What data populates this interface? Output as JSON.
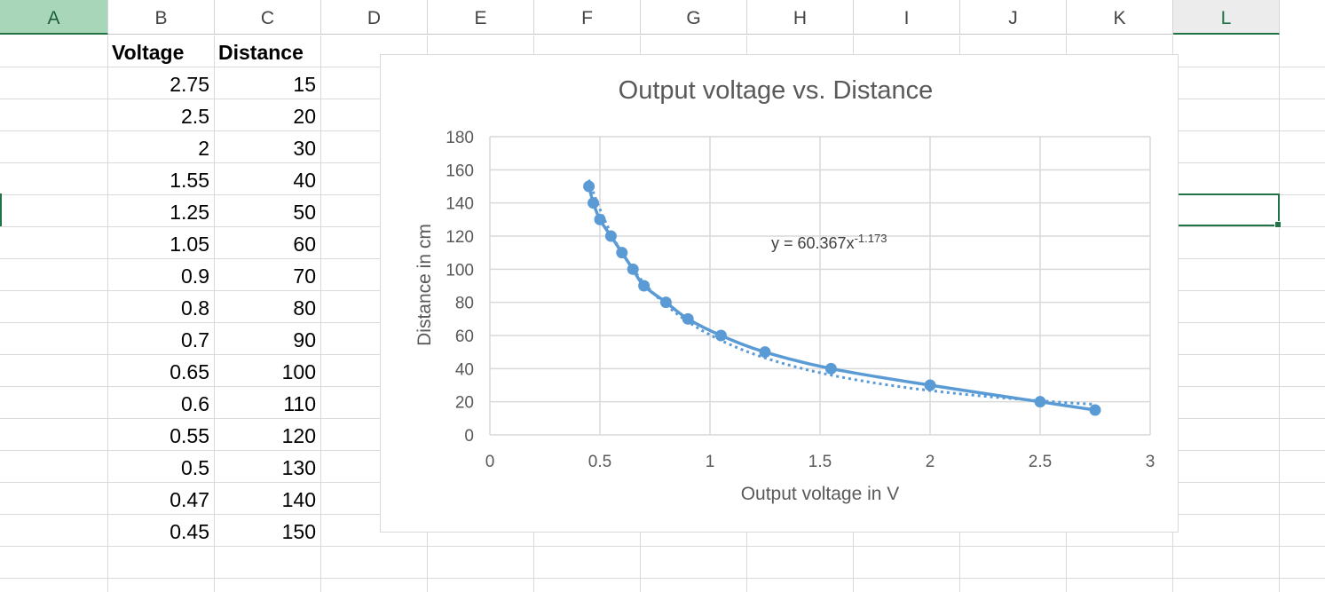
{
  "sheet": {
    "columns": [
      "A",
      "B",
      "C",
      "D",
      "E",
      "F",
      "G",
      "H",
      "I",
      "J",
      "K",
      "L"
    ],
    "selected_column": "A",
    "active_cell_column": "L",
    "headers": {
      "voltage": "Voltage",
      "distance": "Distance"
    },
    "rows": [
      {
        "voltage": "2.75",
        "distance": "15"
      },
      {
        "voltage": "2.5",
        "distance": "20"
      },
      {
        "voltage": "2",
        "distance": "30"
      },
      {
        "voltage": "1.55",
        "distance": "40"
      },
      {
        "voltage": "1.25",
        "distance": "50"
      },
      {
        "voltage": "1.05",
        "distance": "60"
      },
      {
        "voltage": "0.9",
        "distance": "70"
      },
      {
        "voltage": "0.8",
        "distance": "80"
      },
      {
        "voltage": "0.7",
        "distance": "90"
      },
      {
        "voltage": "0.65",
        "distance": "100"
      },
      {
        "voltage": "0.6",
        "distance": "110"
      },
      {
        "voltage": "0.55",
        "distance": "120"
      },
      {
        "voltage": "0.5",
        "distance": "130"
      },
      {
        "voltage": "0.47",
        "distance": "140"
      },
      {
        "voltage": "0.45",
        "distance": "150"
      }
    ]
  },
  "chart_data": {
    "type": "scatter",
    "title": "Output voltage vs. Distance",
    "xlabel": "Output voltage in V",
    "ylabel": "Distance in cm",
    "xlim": [
      0,
      3
    ],
    "ylim": [
      0,
      180
    ],
    "x_ticks": [
      "0",
      "0.5",
      "1",
      "1.5",
      "2",
      "2.5",
      "3"
    ],
    "y_ticks": [
      "0",
      "20",
      "40",
      "60",
      "80",
      "100",
      "120",
      "140",
      "160",
      "180"
    ],
    "grid": true,
    "legend": "none",
    "series": [
      {
        "x": [
          2.75,
          2.5,
          2,
          1.55,
          1.25,
          1.05,
          0.9,
          0.8,
          0.7,
          0.65,
          0.6,
          0.55,
          0.5,
          0.47,
          0.45
        ],
        "y": [
          15,
          20,
          30,
          40,
          50,
          60,
          70,
          80,
          90,
          100,
          110,
          120,
          130,
          140,
          150
        ],
        "color": "#5b9bd5",
        "line": "smooth",
        "markers": true
      }
    ],
    "trendline": {
      "type": "power",
      "coefficient": 60.367,
      "exponent": -1.173,
      "equation_text": "y = 60.367x",
      "equation_exponent": "-1.173",
      "style": "dotted",
      "color": "#5b9bd5"
    }
  }
}
